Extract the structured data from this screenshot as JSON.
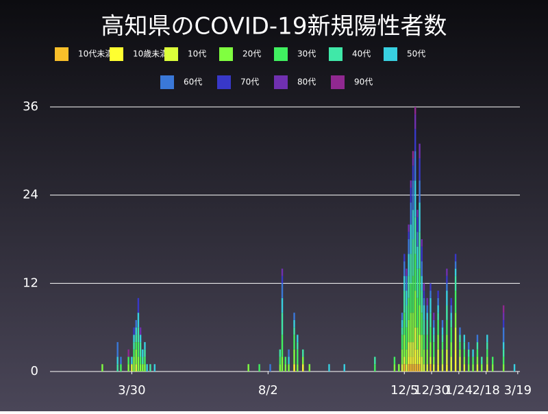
{
  "chart_data": {
    "type": "stacked-bar",
    "title": "高知県のCOVID-19新規陽性者数",
    "x": [
      62,
      76,
      79,
      86,
      89,
      91,
      93,
      95,
      97,
      99,
      101,
      103,
      106,
      110,
      196,
      206,
      216,
      225,
      227,
      230,
      233,
      238,
      241,
      246,
      252,
      270,
      284,
      312,
      330,
      334,
      337,
      339,
      341,
      343,
      345,
      347,
      349,
      351,
      353,
      355,
      357,
      360,
      363,
      366,
      370,
      374,
      378,
      382,
      386,
      390,
      394,
      398,
      402,
      406,
      410,
      415,
      420,
      430,
      440
    ],
    "xlim": [
      14,
      445
    ],
    "xticks": [
      {
        "value": 89,
        "label": "3/30"
      },
      {
        "value": 214,
        "label": "8/2"
      },
      {
        "value": 339,
        "label": "12/5"
      },
      {
        "value": 364,
        "label": "12/30"
      },
      {
        "value": 389,
        "label": "1/24"
      },
      {
        "value": 414,
        "label": "2/18"
      },
      {
        "value": 443,
        "label": "3/19"
      }
    ],
    "ylim": [
      0,
      36
    ],
    "yticks": [
      0,
      12,
      24,
      36
    ],
    "grid": true,
    "series": [
      {
        "name": "10代未満",
        "color": "#f8bf2a",
        "values": [
          0,
          0,
          0,
          0,
          0,
          0,
          0,
          0,
          0,
          0,
          0,
          0,
          0,
          0,
          0,
          0,
          0,
          0,
          0,
          0,
          0,
          0,
          0,
          0,
          0,
          0,
          0,
          0,
          0,
          0,
          0,
          1,
          0,
          1,
          1,
          1,
          1,
          1,
          1,
          0,
          0,
          0,
          1,
          0,
          0,
          0,
          0,
          0,
          0,
          0,
          0,
          0,
          0,
          0,
          0,
          0,
          0,
          0,
          0
        ]
      },
      {
        "name": "10歳未満",
        "color": "#ffff30",
        "values": [
          0,
          0,
          0,
          0,
          0,
          0,
          0,
          0,
          0,
          0,
          0,
          0,
          0,
          0,
          0,
          0,
          0,
          0,
          0,
          0,
          0,
          1,
          0,
          1,
          0,
          0,
          0,
          0,
          0,
          0,
          0,
          0,
          0,
          1,
          1,
          1,
          2,
          0,
          1,
          0,
          0,
          0,
          0,
          0,
          1,
          0,
          1,
          0,
          3,
          0,
          0,
          0,
          0,
          0,
          0,
          0,
          0,
          0,
          0
        ]
      },
      {
        "name": "10代",
        "color": "#dcff3a",
        "values": [
          0,
          0,
          0,
          0,
          1,
          0,
          1,
          0,
          0,
          0,
          0,
          0,
          0,
          0,
          0,
          0,
          0,
          0,
          0,
          0,
          0,
          0,
          0,
          0,
          0,
          0,
          0,
          0,
          0,
          0,
          1,
          1,
          1,
          2,
          2,
          2,
          3,
          2,
          3,
          2,
          1,
          1,
          1,
          1,
          2,
          1,
          2,
          2,
          3,
          2,
          1,
          0,
          0,
          1,
          0,
          1,
          0,
          0,
          0
        ]
      },
      {
        "name": "20代",
        "color": "#80ff40",
        "values": [
          1,
          0,
          0,
          1,
          0,
          2,
          2,
          2,
          1,
          1,
          1,
          0,
          0,
          0,
          1,
          0,
          0,
          1,
          2,
          1,
          1,
          2,
          1,
          1,
          1,
          0,
          0,
          0,
          1,
          1,
          2,
          3,
          2,
          3,
          4,
          4,
          5,
          3,
          4,
          3,
          2,
          2,
          2,
          1,
          2,
          2,
          2,
          2,
          2,
          1,
          1,
          1,
          1,
          1,
          1,
          1,
          1,
          1,
          0
        ]
      },
      {
        "name": "30代",
        "color": "#40f060",
        "values": [
          0,
          0,
          1,
          1,
          0,
          1,
          1,
          2,
          1,
          0,
          1,
          0,
          0,
          0,
          0,
          1,
          0,
          1,
          3,
          1,
          0,
          2,
          2,
          0,
          0,
          0,
          0,
          1,
          1,
          0,
          2,
          3,
          3,
          3,
          4,
          5,
          5,
          4,
          5,
          3,
          2,
          2,
          2,
          2,
          2,
          1,
          2,
          2,
          3,
          1,
          1,
          1,
          1,
          1,
          0,
          1,
          1,
          1,
          0
        ]
      },
      {
        "name": "40代",
        "color": "#40e8a8",
        "values": [
          0,
          1,
          0,
          0,
          0,
          1,
          1,
          2,
          2,
          1,
          1,
          0,
          1,
          0,
          0,
          0,
          0,
          1,
          3,
          0,
          0,
          1,
          1,
          1,
          0,
          0,
          0,
          1,
          0,
          0,
          1,
          3,
          3,
          3,
          4,
          5,
          5,
          4,
          5,
          3,
          2,
          2,
          2,
          1,
          1,
          1,
          2,
          1,
          2,
          1,
          1,
          1,
          0,
          1,
          1,
          1,
          0,
          1,
          0
        ]
      },
      {
        "name": "50代",
        "color": "#38d0e0",
        "values": [
          0,
          1,
          0,
          0,
          1,
          1,
          1,
          2,
          1,
          1,
          1,
          1,
          0,
          1,
          0,
          0,
          0,
          0,
          2,
          0,
          1,
          1,
          1,
          0,
          0,
          1,
          1,
          0,
          0,
          0,
          1,
          2,
          2,
          3,
          4,
          4,
          5,
          3,
          4,
          2,
          2,
          1,
          2,
          1,
          1,
          1,
          2,
          1,
          1,
          0,
          1,
          0,
          1,
          0,
          0,
          1,
          0,
          1,
          1
        ]
      },
      {
        "name": "60代",
        "color": "#3a78d8",
        "values": [
          0,
          2,
          1,
          0,
          0,
          0,
          1,
          0,
          0,
          0,
          0,
          0,
          0,
          0,
          0,
          0,
          1,
          0,
          2,
          0,
          1,
          1,
          0,
          0,
          0,
          0,
          0,
          0,
          0,
          0,
          1,
          2,
          2,
          2,
          3,
          4,
          4,
          2,
          3,
          2,
          1,
          1,
          1,
          1,
          1,
          1,
          1,
          1,
          1,
          1,
          0,
          1,
          0,
          1,
          0,
          0,
          0,
          2,
          0
        ]
      },
      {
        "name": "70代",
        "color": "#3838c8",
        "values": [
          0,
          0,
          0,
          0,
          0,
          1,
          0,
          2,
          0,
          0,
          0,
          0,
          0,
          0,
          0,
          0,
          0,
          0,
          1,
          0,
          0,
          0,
          0,
          0,
          0,
          0,
          0,
          0,
          0,
          0,
          0,
          1,
          0,
          1,
          2,
          2,
          3,
          2,
          3,
          2,
          1,
          0,
          1,
          0,
          1,
          0,
          1,
          1,
          1,
          0,
          0,
          0,
          0,
          0,
          0,
          0,
          0,
          1,
          0
        ]
      },
      {
        "name": "80代",
        "color": "#7030b0",
        "values": [
          0,
          0,
          0,
          0,
          0,
          0,
          0,
          0,
          1,
          0,
          0,
          0,
          0,
          0,
          0,
          0,
          0,
          0,
          1,
          0,
          0,
          0,
          0,
          0,
          0,
          0,
          0,
          0,
          0,
          0,
          0,
          0,
          1,
          1,
          1,
          1,
          2,
          1,
          2,
          1,
          1,
          1,
          0,
          1,
          0,
          0,
          1,
          0,
          0,
          0,
          0,
          0,
          0,
          0,
          0,
          0,
          0,
          1,
          0
        ]
      },
      {
        "name": "90代",
        "color": "#902890",
        "values": [
          0,
          0,
          0,
          1,
          0,
          0,
          0,
          0,
          0,
          0,
          0,
          0,
          0,
          0,
          0,
          0,
          0,
          0,
          0,
          0,
          0,
          0,
          0,
          0,
          0,
          0,
          0,
          0,
          0,
          0,
          0,
          0,
          0,
          0,
          0,
          1,
          1,
          0,
          0,
          0,
          0,
          0,
          0,
          0,
          0,
          0,
          0,
          0,
          0,
          0,
          0,
          0,
          0,
          0,
          0,
          0,
          0,
          1,
          0
        ]
      }
    ]
  }
}
